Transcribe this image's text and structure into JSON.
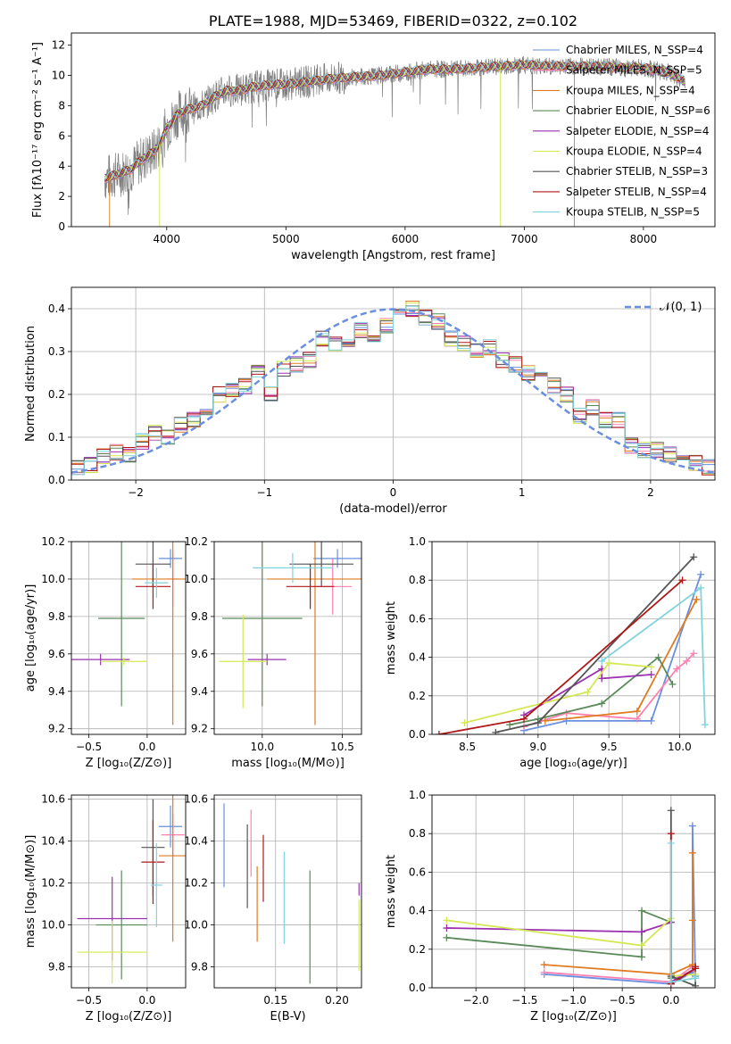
{
  "colors": {
    "chabrier_miles": "#6a8fde",
    "salpeter_miles": "#ff80b0",
    "kroupa_miles": "#e07b22",
    "chabrier_elodie": "#5a8a5a",
    "salpeter_elodie": "#9b30b0",
    "kroupa_elodie": "#d4e855",
    "chabrier_stelib": "#555555",
    "salpeter_stelib": "#b01818",
    "kroupa_stelib": "#80d4dc",
    "normal": "#6a8fde",
    "spectrum": "#808080"
  },
  "chart_data": [
    {
      "id": "spectrum",
      "type": "line",
      "title": "PLATE=1988, MJD=53469, FIBERID=0322, z=0.102",
      "xlabel": "wavelength [Angstrom, rest frame]",
      "ylabel": "Flux [fλ10⁻¹⁷ erg cm⁻² s⁻¹ A⁻¹]",
      "xlim": [
        3200,
        8600
      ],
      "ylim": [
        0,
        12.8
      ],
      "xticks": [
        "4000",
        "5000",
        "6000",
        "7000",
        "8000"
      ],
      "yticks": [
        "0",
        "2",
        "4",
        "6",
        "8",
        "10",
        "12"
      ],
      "continuum": {
        "x": [
          3480,
          3600,
          3700,
          3800,
          3900,
          3950,
          4000,
          4100,
          4200,
          4300,
          4400,
          4500,
          4600,
          4700,
          4800,
          4900,
          5000,
          5200,
          5400,
          5600,
          5800,
          6000,
          6200,
          6400,
          6600,
          6800,
          7000,
          7200,
          7400,
          7600,
          7800,
          8000,
          8200,
          8350
        ],
        "y": [
          3.2,
          3.5,
          3.8,
          4.5,
          5.0,
          5.6,
          6.5,
          7.5,
          7.8,
          8.0,
          8.6,
          9.0,
          9.0,
          9.2,
          9.3,
          9.4,
          9.4,
          9.6,
          9.8,
          9.9,
          10.0,
          10.2,
          10.4,
          10.4,
          10.5,
          10.6,
          10.7,
          10.6,
          10.6,
          10.6,
          10.5,
          10.5,
          10.2,
          9.6
        ]
      },
      "legend": [
        "Chabrier MILES, N_SSP=4",
        "Salpeter MILES, N_SSP=5",
        "Kroupa MILES, N_SSP=4",
        "Chabrier ELODIE, N_SSP=6",
        "Salpeter ELODIE, N_SSP=4",
        "Kroupa ELODIE, N_SSP=4",
        "Chabrier STELIB, N_SSP=3",
        "Salpeter STELIB, N_SSP=4",
        "Kroupa STELIB, N_SSP=5"
      ],
      "legend_position": "right"
    },
    {
      "id": "residuals",
      "type": "histogram",
      "xlabel": "(data-model)/error",
      "ylabel": "Normed distribution",
      "xlim": [
        -2.5,
        2.5
      ],
      "ylim": [
        0,
        0.45
      ],
      "xticks": [
        "−2",
        "−1",
        "0",
        "1",
        "2"
      ],
      "yticks": [
        "0.0",
        "0.1",
        "0.2",
        "0.3",
        "0.4"
      ],
      "bins": [
        -2.5,
        -2.4,
        -2.3,
        -2.2,
        -2.1,
        -2.0,
        -1.9,
        -1.8,
        -1.7,
        -1.6,
        -1.5,
        -1.4,
        -1.3,
        -1.2,
        -1.1,
        -1.0,
        -0.9,
        -0.8,
        -0.7,
        -0.6,
        -0.5,
        -0.4,
        -0.3,
        -0.2,
        -0.1,
        0.0,
        0.1,
        0.2,
        0.3,
        0.4,
        0.5,
        0.6,
        0.7,
        0.8,
        0.9,
        1.0,
        1.1,
        1.2,
        1.3,
        1.4,
        1.5,
        1.6,
        1.7,
        1.8,
        1.9,
        2.0,
        2.1,
        2.2,
        2.3,
        2.4,
        2.5
      ],
      "base": [
        0.03,
        0.035,
        0.055,
        0.065,
        0.06,
        0.09,
        0.11,
        0.1,
        0.13,
        0.14,
        0.17,
        0.2,
        0.21,
        0.22,
        0.25,
        0.2,
        0.26,
        0.27,
        0.28,
        0.33,
        0.32,
        0.33,
        0.35,
        0.33,
        0.36,
        0.38,
        0.4,
        0.38,
        0.37,
        0.33,
        0.32,
        0.3,
        0.31,
        0.28,
        0.27,
        0.25,
        0.24,
        0.22,
        0.2,
        0.15,
        0.17,
        0.14,
        0.14,
        0.08,
        0.07,
        0.07,
        0.06,
        0.06,
        0.04,
        0.03
      ],
      "legend": "𝒩(0, 1)",
      "legend_position": "upper right"
    },
    {
      "id": "age_vs_Z",
      "type": "errorbar",
      "xlabel": "Z [log₁₀(Z/Z⊙)]",
      "ylabel": "age  [log₁₀(age/yr)]",
      "xlim": [
        -0.65,
        0.33
      ],
      "ylim": [
        9.17,
        10.2
      ],
      "xticks": [
        "−0.5",
        "0.0"
      ],
      "yticks": [
        "9.2",
        "9.4",
        "9.6",
        "9.8",
        "10.0",
        "10.2"
      ],
      "points": [
        {
          "c": "chabrier_miles",
          "x": 0.2,
          "xe": 0.1,
          "y": 10.11,
          "ye": 0.05
        },
        {
          "c": "salpeter_miles",
          "x": 0.22,
          "xe": 0.05,
          "y": 10.0,
          "ye": 0.15
        },
        {
          "c": "kroupa_miles",
          "x": 0.22,
          "xe": 0.35,
          "y": 10.0,
          "ye": 0.78
        },
        {
          "c": "chabrier_elodie",
          "x": -0.22,
          "xe": 0.2,
          "y": 9.79,
          "ye": 0.47
        },
        {
          "c": "salpeter_elodie",
          "x": -0.4,
          "xe": 0.25,
          "y": 9.57,
          "ye": 0.03
        },
        {
          "c": "kroupa_elodie",
          "x": -0.2,
          "xe": 0.2,
          "y": 9.56,
          "ye": 0.02
        },
        {
          "c": "chabrier_stelib",
          "x": 0.05,
          "xe": 0.15,
          "y": 10.08,
          "ye": 0.12
        },
        {
          "c": "salpeter_stelib",
          "x": 0.05,
          "xe": 0.15,
          "y": 9.96,
          "ye": 0.12
        },
        {
          "c": "kroupa_stelib",
          "x": 0.08,
          "xe": 0.1,
          "y": 9.98,
          "ye": 0.08
        }
      ]
    },
    {
      "id": "age_vs_mass",
      "type": "errorbar",
      "xlabel": "mass [log₁₀(M/M⊙)]",
      "ylabel": "",
      "xlim": [
        9.7,
        10.62
      ],
      "ylim": [
        9.17,
        10.2
      ],
      "xticks": [
        "10.0",
        "10.5"
      ],
      "yticks": [
        "9.2",
        "9.4",
        "9.6",
        "9.8",
        "10.0",
        "10.2"
      ],
      "points": [
        {
          "c": "chabrier_miles",
          "x": 10.47,
          "xe": 0.15,
          "y": 10.11,
          "ye": 0.05
        },
        {
          "c": "salpeter_miles",
          "x": 10.44,
          "xe": 0.12,
          "y": 9.96,
          "ye": 0.15
        },
        {
          "c": "kroupa_miles",
          "x": 10.33,
          "xe": 0.3,
          "y": 10.0,
          "ye": 0.78
        },
        {
          "c": "chabrier_elodie",
          "x": 10.0,
          "xe": 0.25,
          "y": 9.79,
          "ye": 0.47
        },
        {
          "c": "salpeter_elodie",
          "x": 10.03,
          "xe": 0.12,
          "y": 9.57,
          "ye": 0.03
        },
        {
          "c": "kroupa_elodie",
          "x": 9.88,
          "xe": 0.15,
          "y": 9.56,
          "ye": 0.25
        },
        {
          "c": "chabrier_stelib",
          "x": 10.37,
          "xe": 0.2,
          "y": 10.08,
          "ye": 0.12
        },
        {
          "c": "salpeter_stelib",
          "x": 10.3,
          "xe": 0.15,
          "y": 9.96,
          "ye": 0.12
        },
        {
          "c": "kroupa_stelib",
          "x": 10.19,
          "xe": 0.25,
          "y": 10.06,
          "ye": 0.08
        }
      ]
    },
    {
      "id": "mass_weight_vs_age",
      "type": "line",
      "xlabel": "age  [log₁₀(age/yr)]",
      "ylabel": "mass weight",
      "xlim": [
        8.25,
        10.25
      ],
      "ylim": [
        0,
        1.0
      ],
      "xticks": [
        "8.5",
        "9.0",
        "9.5",
        "10.0"
      ],
      "yticks": [
        "0.0",
        "0.2",
        "0.4",
        "0.6",
        "0.8",
        "1.0"
      ],
      "series": [
        {
          "c": "chabrier_miles",
          "x": [
            8.9,
            9.2,
            9.8,
            10.15
          ],
          "y": [
            0.02,
            0.07,
            0.07,
            0.83
          ]
        },
        {
          "c": "salpeter_miles",
          "x": [
            8.9,
            9.2,
            9.7,
            9.98,
            10.05,
            10.1
          ],
          "y": [
            0.04,
            0.11,
            0.08,
            0.34,
            0.38,
            0.42
          ]
        },
        {
          "c": "kroupa_miles",
          "x": [
            9.05,
            9.7,
            10.12
          ],
          "y": [
            0.07,
            0.12,
            0.7
          ]
        },
        {
          "c": "chabrier_elodie",
          "x": [
            8.8,
            9.0,
            9.45,
            9.85,
            9.95
          ],
          "y": [
            0.05,
            0.08,
            0.16,
            0.4,
            0.26
          ]
        },
        {
          "c": "salpeter_elodie",
          "x": [
            8.9,
            9.45,
            9.45,
            9.8
          ],
          "y": [
            0.1,
            0.34,
            0.29,
            0.31
          ]
        },
        {
          "c": "kroupa_elodie",
          "x": [
            8.48,
            9.35,
            9.5,
            9.8
          ],
          "y": [
            0.06,
            0.22,
            0.37,
            0.35
          ]
        },
        {
          "c": "chabrier_stelib",
          "x": [
            8.7,
            9.0,
            10.1
          ],
          "y": [
            0.01,
            0.06,
            0.92
          ]
        },
        {
          "c": "salpeter_stelib",
          "x": [
            8.3,
            8.9,
            10.02
          ],
          "y": [
            0.0,
            0.08,
            0.8
          ]
        },
        {
          "c": "kroupa_stelib",
          "x": [
            9.45,
            10.15,
            10.18
          ],
          "y": [
            0.38,
            0.76,
            0.05
          ]
        }
      ]
    },
    {
      "id": "mass_vs_Z",
      "type": "errorbar",
      "xlabel": "Z [log₁₀(Z/Z⊙)]",
      "ylabel": "mass [log₁₀(M/M⊙)]",
      "xlim": [
        -0.65,
        0.33
      ],
      "ylim": [
        9.7,
        10.62
      ],
      "xticks": [
        "−0.5",
        "0.0"
      ],
      "yticks": [
        "9.8",
        "10.0",
        "10.2",
        "10.4",
        "10.6"
      ],
      "points": [
        {
          "c": "chabrier_miles",
          "x": 0.2,
          "xe": 0.1,
          "y": 10.47,
          "ye": 0.1
        },
        {
          "c": "salpeter_miles",
          "x": 0.22,
          "xe": 0.1,
          "y": 10.43,
          "ye": 0.1
        },
        {
          "c": "kroupa_miles",
          "x": 0.22,
          "xe": 0.12,
          "y": 10.33,
          "ye": 0.41
        },
        {
          "c": "chabrier_elodie",
          "x": -0.22,
          "xe": 0.22,
          "y": 10.0,
          "ye": 0.26
        },
        {
          "c": "salpeter_elodie",
          "x": -0.3,
          "xe": 0.3,
          "y": 10.03,
          "ye": 0.2
        },
        {
          "c": "kroupa_elodie",
          "x": -0.3,
          "xe": 0.3,
          "y": 9.87,
          "ye": 0.15
        },
        {
          "c": "chabrier_stelib",
          "x": 0.05,
          "xe": 0.1,
          "y": 10.37,
          "ye": 0.23
        },
        {
          "c": "salpeter_stelib",
          "x": 0.05,
          "xe": 0.1,
          "y": 10.3,
          "ye": 0.2
        },
        {
          "c": "kroupa_stelib",
          "x": 0.08,
          "xe": 0.05,
          "y": 10.19,
          "ye": 0.2
        }
      ]
    },
    {
      "id": "mass_vs_ebv",
      "type": "errorbar",
      "xlabel": "E(B-V)",
      "ylabel": "",
      "xlim": [
        0.1,
        0.22
      ],
      "ylim": [
        9.7,
        10.62
      ],
      "xticks": [
        "0.15",
        "0.20"
      ],
      "yticks": [
        "9.8",
        "10.0",
        "10.2",
        "10.4",
        "10.6"
      ],
      "points": [
        {
          "c": "chabrier_miles",
          "x": 0.108,
          "xe": 0,
          "y": 10.38,
          "ye": 0.2
        },
        {
          "c": "salpeter_miles",
          "x": 0.13,
          "xe": 0,
          "y": 10.39,
          "ye": 0.16
        },
        {
          "c": "kroupa_miles",
          "x": 0.135,
          "xe": 0,
          "y": 10.1,
          "ye": 0.18
        },
        {
          "c": "chabrier_elodie",
          "x": 0.178,
          "xe": 0,
          "y": 9.99,
          "ye": 0.27
        },
        {
          "c": "salpeter_elodie",
          "x": 0.218,
          "xe": 0,
          "y": 10.17,
          "ye": 0.03
        },
        {
          "c": "kroupa_elodie",
          "x": 0.218,
          "xe": 0,
          "y": 9.95,
          "ye": 0.17
        },
        {
          "c": "chabrier_stelib",
          "x": 0.127,
          "xe": 0,
          "y": 10.28,
          "ye": 0.2
        },
        {
          "c": "salpeter_stelib",
          "x": 0.14,
          "xe": 0,
          "y": 10.27,
          "ye": 0.16
        },
        {
          "c": "kroupa_stelib",
          "x": 0.157,
          "xe": 0,
          "y": 10.13,
          "ye": 0.22
        }
      ]
    },
    {
      "id": "mass_weight_vs_Z",
      "type": "line",
      "xlabel": "Z [log₁₀(Z/Z⊙)]",
      "ylabel": "mass weight",
      "xlim": [
        -2.45,
        0.45
      ],
      "ylim": [
        0,
        1.0
      ],
      "xticks": [
        "−2.0",
        "−1.5",
        "−1.0",
        "−0.5",
        "0.0"
      ],
      "yticks": [
        "0.0",
        "0.2",
        "0.4",
        "0.6",
        "0.8",
        "1.0"
      ],
      "series": [
        {
          "c": "chabrier_miles",
          "x": [
            -1.3,
            0.0,
            0.22,
            0.22,
            0.25
          ],
          "y": [
            0.07,
            0.02,
            0.08,
            0.84,
            0.05
          ]
        },
        {
          "c": "salpeter_miles",
          "x": [
            -1.3,
            0.0,
            0.22,
            0.25
          ],
          "y": [
            0.08,
            0.03,
            0.11,
            0.06
          ]
        },
        {
          "c": "kroupa_miles",
          "x": [
            -1.3,
            0.0,
            0.22,
            0.22,
            0.22
          ],
          "y": [
            0.12,
            0.07,
            0.12,
            0.7,
            0.35
          ]
        },
        {
          "c": "chabrier_elodie",
          "x": [
            -2.3,
            -0.3,
            -0.3,
            0.0,
            0.0
          ],
          "y": [
            0.26,
            0.16,
            0.4,
            0.34,
            0.05
          ]
        },
        {
          "c": "salpeter_elodie",
          "x": [
            -2.3,
            -0.3,
            0.0,
            0.0,
            0.25
          ],
          "y": [
            0.31,
            0.29,
            0.34,
            0.03,
            0.1
          ]
        },
        {
          "c": "kroupa_elodie",
          "x": [
            -2.3,
            -0.3,
            0.0,
            0.0,
            0.25
          ],
          "y": [
            0.35,
            0.22,
            0.36,
            0.06,
            0.07
          ]
        },
        {
          "c": "chabrier_stelib",
          "x": [
            0.0,
            0.0,
            0.25,
            0.25
          ],
          "y": [
            0.92,
            0.06,
            0.01,
            0.06
          ]
        },
        {
          "c": "salpeter_stelib",
          "x": [
            0.0,
            0.0,
            0.25,
            0.25
          ],
          "y": [
            0.8,
            0.02,
            0.1,
            0.11
          ]
        },
        {
          "c": "kroupa_stelib",
          "x": [
            0.0,
            0.0,
            0.25,
            0.25
          ],
          "y": [
            0.75,
            0.03,
            0.05,
            0.06
          ]
        }
      ]
    }
  ]
}
